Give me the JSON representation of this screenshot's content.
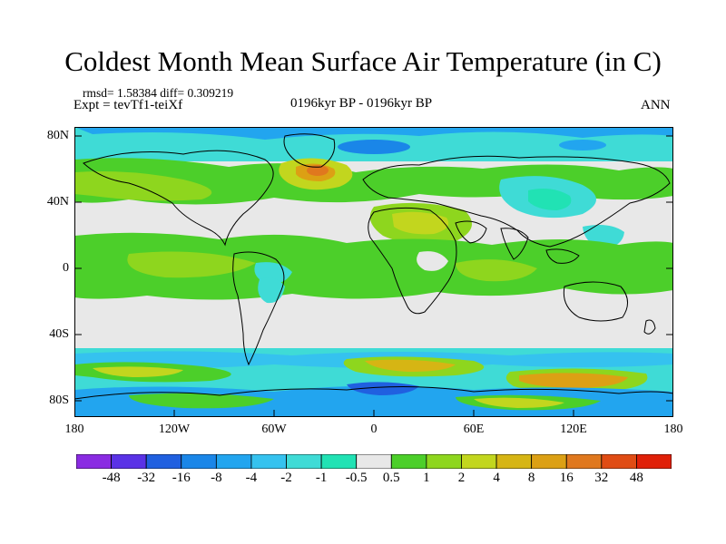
{
  "title": "Coldest Month Mean Surface Air Temperature (in C)",
  "stats": "rmsd= 1.58384 diff= 0.309219",
  "experiment": "Expt = tevTf1-teiXf",
  "period": "0196kyr BP - 0196kyr BP",
  "season": "ANN",
  "lat_ticks": [
    "80N",
    "40N",
    "0",
    "40S",
    "80S"
  ],
  "lon_ticks": [
    "180",
    "120W",
    "60W",
    "0",
    "60E",
    "120E",
    "180"
  ],
  "colorbar": {
    "labels": [
      "-48",
      "-32",
      "-16",
      "-8",
      "-4",
      "-2",
      "-1",
      "-0.5",
      "0.5",
      "1",
      "2",
      "4",
      "8",
      "16",
      "32",
      "48"
    ],
    "colors": [
      "#8a2be2",
      "#5a32e6",
      "#2060e0",
      "#1a86e8",
      "#22a5ef",
      "#35c2ef",
      "#3fdbd6",
      "#21e2b4",
      "#e8e8e8",
      "#4ccf2a",
      "#8ed61e",
      "#c2d61e",
      "#d6b514",
      "#dca014",
      "#e0781e",
      "#e04c14",
      "#e02008"
    ]
  }
}
